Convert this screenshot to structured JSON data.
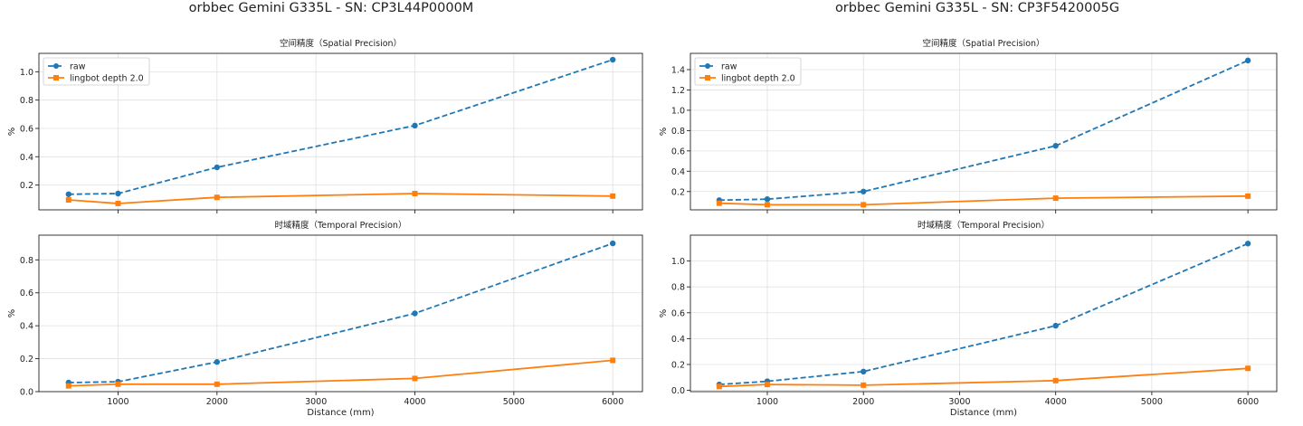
{
  "figure_titles": [
    "orbbec Gemini G335L - SN: CP3L44P0000M",
    "orbbec Gemini G335L - SN: CP3F5420005G"
  ],
  "colors": {
    "raw": "#1f77b4",
    "lingbot": "#ff7f0e",
    "grid": "#e0e0e0",
    "frame": "#222222"
  },
  "chart_data": [
    {
      "type": "line",
      "title": "空间精度（Spatial Precision）",
      "xlabel": "",
      "ylabel": "%",
      "x": [
        500,
        1000,
        2000,
        4000,
        6000
      ],
      "xlim": [
        200,
        6300
      ],
      "xticks": [
        1000,
        2000,
        3000,
        4000,
        5000,
        6000
      ],
      "ylim": [
        0.025,
        1.13
      ],
      "yticks": [
        0.2,
        0.4,
        0.6,
        0.8,
        1.0
      ],
      "grid": true,
      "legend": "top-left",
      "series": [
        {
          "name": "raw",
          "values": [
            0.135,
            0.14,
            0.325,
            0.62,
            1.085
          ],
          "style": "dashed",
          "marker": "circle"
        },
        {
          "name": "lingbot depth 2.0",
          "values": [
            0.095,
            0.07,
            0.113,
            0.14,
            0.122
          ],
          "style": "solid",
          "marker": "square"
        }
      ]
    },
    {
      "type": "line",
      "title": "时域精度（Temporal Precision）",
      "xlabel": "Distance (mm)",
      "ylabel": "%",
      "x": [
        500,
        1000,
        2000,
        4000,
        6000
      ],
      "xlim": [
        200,
        6300
      ],
      "xticks": [
        1000,
        2000,
        3000,
        4000,
        5000,
        6000
      ],
      "ylim": [
        0.0,
        0.95
      ],
      "yticks": [
        0.0,
        0.2,
        0.4,
        0.6,
        0.8
      ],
      "grid": true,
      "series": [
        {
          "name": "raw",
          "values": [
            0.055,
            0.06,
            0.18,
            0.475,
            0.9
          ],
          "style": "dashed",
          "marker": "circle"
        },
        {
          "name": "lingbot depth 2.0",
          "values": [
            0.035,
            0.045,
            0.045,
            0.08,
            0.19
          ],
          "style": "solid",
          "marker": "square"
        }
      ]
    },
    {
      "type": "line",
      "title": "空间精度（Spatial Precision）",
      "xlabel": "",
      "ylabel": "%",
      "x": [
        500,
        1000,
        2000,
        4000,
        6000
      ],
      "xlim": [
        200,
        6300
      ],
      "xticks": [
        1000,
        2000,
        3000,
        4000,
        5000,
        6000
      ],
      "ylim": [
        0.02,
        1.56
      ],
      "yticks": [
        0.2,
        0.4,
        0.6,
        0.8,
        1.0,
        1.2,
        1.4
      ],
      "grid": true,
      "legend": "top-left",
      "series": [
        {
          "name": "raw",
          "values": [
            0.115,
            0.125,
            0.2,
            0.65,
            1.49
          ],
          "style": "dashed",
          "marker": "circle"
        },
        {
          "name": "lingbot depth 2.0",
          "values": [
            0.085,
            0.07,
            0.07,
            0.135,
            0.155
          ],
          "style": "solid",
          "marker": "square"
        }
      ]
    },
    {
      "type": "line",
      "title": "时域精度（Temporal Precision）",
      "xlabel": "Distance (mm)",
      "ylabel": "%",
      "x": [
        500,
        1000,
        2000,
        4000,
        6000
      ],
      "xlim": [
        200,
        6300
      ],
      "xticks": [
        1000,
        2000,
        3000,
        4000,
        5000,
        6000
      ],
      "ylim": [
        -0.01,
        1.2
      ],
      "yticks": [
        0.0,
        0.2,
        0.4,
        0.6,
        0.8,
        1.0
      ],
      "grid": true,
      "series": [
        {
          "name": "raw",
          "values": [
            0.045,
            0.07,
            0.145,
            0.5,
            1.135
          ],
          "style": "dashed",
          "marker": "circle"
        },
        {
          "name": "lingbot depth 2.0",
          "values": [
            0.03,
            0.045,
            0.04,
            0.075,
            0.17
          ],
          "style": "solid",
          "marker": "square"
        }
      ]
    }
  ]
}
